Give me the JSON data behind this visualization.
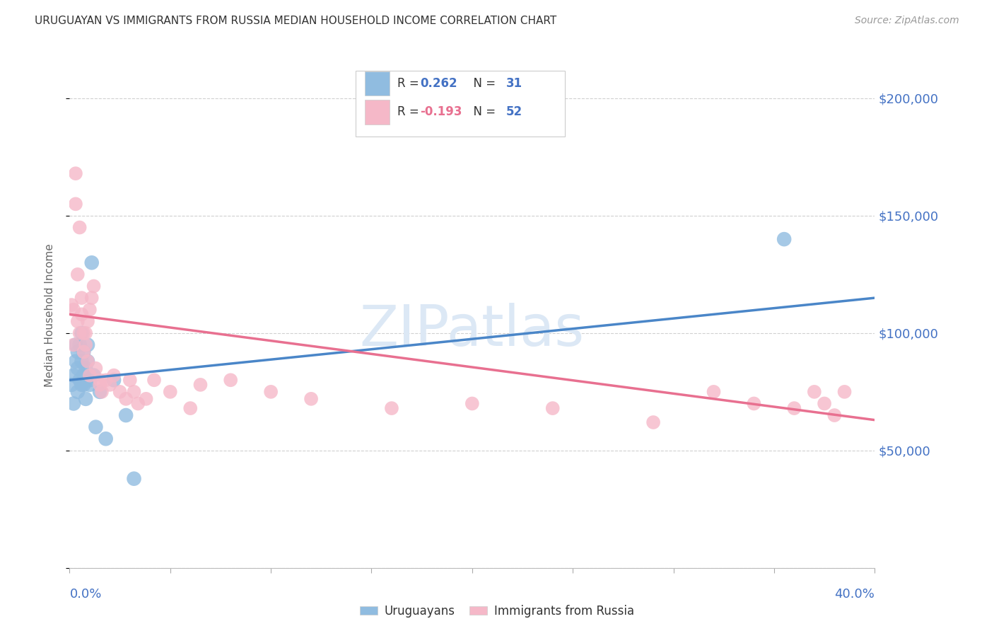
{
  "title": "URUGUAYAN VS IMMIGRANTS FROM RUSSIA MEDIAN HOUSEHOLD INCOME CORRELATION CHART",
  "source": "Source: ZipAtlas.com",
  "ylabel": "Median Household Income",
  "yticks": [
    0,
    50000,
    100000,
    150000,
    200000
  ],
  "ytick_labels": [
    "",
    "$50,000",
    "$100,000",
    "$150,000",
    "$200,000"
  ],
  "xlim": [
    0.0,
    0.4
  ],
  "ylim": [
    0,
    215000
  ],
  "background_color": "#ffffff",
  "blue_color": "#90bce0",
  "pink_color": "#f5b8c8",
  "blue_line_color": "#4a86c8",
  "pink_line_color": "#e87090",
  "tick_color": "#4472c4",
  "grid_color": "#d0d0d0",
  "title_color": "#333333",
  "source_color": "#999999",
  "ylabel_color": "#666666",
  "watermark": "ZIPatlas",
  "watermark_color": "#dce8f5",
  "blue_scatter_x": [
    0.001,
    0.002,
    0.002,
    0.003,
    0.003,
    0.004,
    0.004,
    0.004,
    0.005,
    0.005,
    0.006,
    0.006,
    0.006,
    0.007,
    0.007,
    0.007,
    0.008,
    0.008,
    0.009,
    0.009,
    0.01,
    0.01,
    0.011,
    0.012,
    0.013,
    0.015,
    0.018,
    0.022,
    0.028,
    0.032,
    0.355
  ],
  "blue_scatter_y": [
    78000,
    82000,
    70000,
    88000,
    95000,
    75000,
    85000,
    92000,
    80000,
    95000,
    78000,
    88000,
    100000,
    82000,
    78000,
    92000,
    85000,
    72000,
    88000,
    95000,
    80000,
    78000,
    130000,
    82000,
    60000,
    75000,
    55000,
    80000,
    65000,
    38000,
    140000
  ],
  "pink_scatter_x": [
    0.001,
    0.002,
    0.002,
    0.003,
    0.003,
    0.004,
    0.004,
    0.005,
    0.005,
    0.006,
    0.006,
    0.007,
    0.007,
    0.008,
    0.008,
    0.009,
    0.009,
    0.01,
    0.01,
    0.011,
    0.012,
    0.013,
    0.015,
    0.015,
    0.016,
    0.018,
    0.02,
    0.022,
    0.025,
    0.028,
    0.03,
    0.032,
    0.034,
    0.038,
    0.042,
    0.05,
    0.06,
    0.065,
    0.08,
    0.1,
    0.12,
    0.16,
    0.2,
    0.24,
    0.29,
    0.32,
    0.34,
    0.36,
    0.37,
    0.375,
    0.38,
    0.385
  ],
  "pink_scatter_y": [
    112000,
    110000,
    95000,
    168000,
    155000,
    105000,
    125000,
    100000,
    145000,
    108000,
    115000,
    100000,
    92000,
    95000,
    100000,
    88000,
    105000,
    82000,
    110000,
    115000,
    120000,
    85000,
    78000,
    80000,
    75000,
    80000,
    78000,
    82000,
    75000,
    72000,
    80000,
    75000,
    70000,
    72000,
    80000,
    75000,
    68000,
    78000,
    80000,
    75000,
    72000,
    68000,
    70000,
    68000,
    62000,
    75000,
    70000,
    68000,
    75000,
    70000,
    65000,
    75000
  ],
  "blue_line_x0": 0.0,
  "blue_line_x1": 0.4,
  "blue_line_y0": 80000,
  "blue_line_y1": 115000,
  "pink_line_x0": 0.0,
  "pink_line_x1": 0.4,
  "pink_line_y0": 108000,
  "pink_line_y1": 63000
}
